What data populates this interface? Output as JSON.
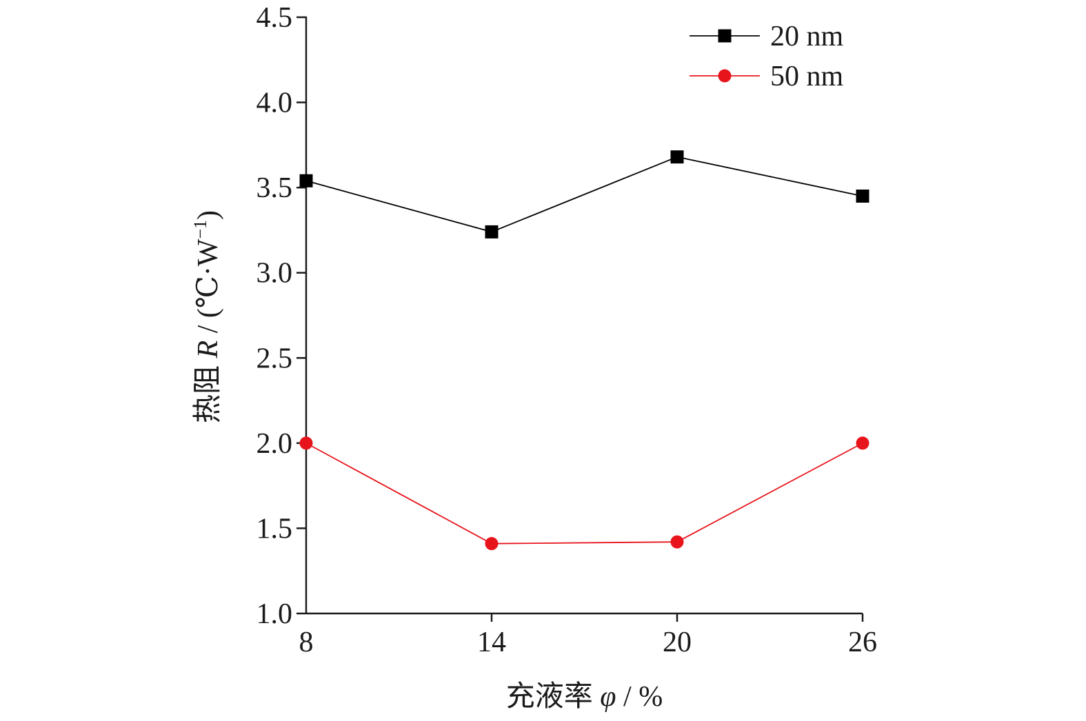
{
  "chart_data": {
    "type": "line",
    "xlabel": {
      "prefix": "充液率 ",
      "symbol": "φ",
      "suffix": " / %"
    },
    "ylabel": {
      "prefix": "热阻 ",
      "symbol": "R",
      "suffix": " / (℃·W",
      "sup": "−1",
      "close": ")"
    },
    "x": [
      8,
      14,
      20,
      26
    ],
    "x_tick_labels": [
      "8",
      "14",
      "20",
      "26"
    ],
    "ylim": [
      1.0,
      4.5
    ],
    "y_ticks": [
      1.0,
      1.5,
      2.0,
      2.5,
      3.0,
      3.5,
      4.0,
      4.5
    ],
    "y_tick_labels": [
      "1.0",
      "1.5",
      "2.0",
      "2.5",
      "3.0",
      "3.5",
      "4.0",
      "4.5"
    ],
    "series": [
      {
        "name": "20 nm",
        "values": [
          3.54,
          3.24,
          3.68,
          3.45
        ],
        "color": "#000000",
        "marker": "square"
      },
      {
        "name": "50 nm",
        "values": [
          2.0,
          1.41,
          1.42,
          2.0
        ],
        "color": "#e8141c",
        "marker": "circle"
      }
    ],
    "legend_position": "top-right",
    "grid": false
  }
}
